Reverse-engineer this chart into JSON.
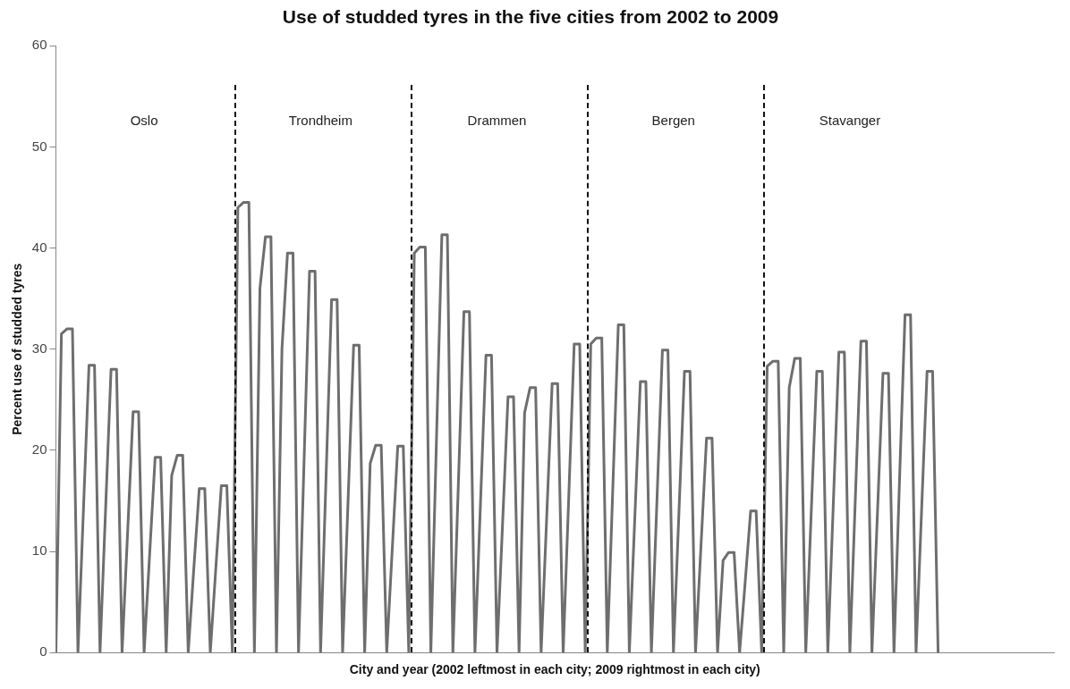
{
  "chart_data": {
    "type": "line",
    "title": "Use of studded tyres in the five cities from 2002 to 2009",
    "xlabel": "City and year (2002 leftmost in each city; 2009 rightmost in each city)",
    "ylabel": "Percent use of studded tyres",
    "annotations": [
      "Oslo",
      "Trondheim",
      "Drammen",
      "Bergen",
      "Stavanger"
    ],
    "categories": [
      null,
      null,
      null,
      null,
      null,
      null,
      null,
      null,
      null,
      null,
      null,
      null,
      null,
      null,
      null,
      null,
      null,
      null,
      null,
      null,
      null,
      null,
      null,
      null,
      null,
      null,
      null,
      null,
      null,
      null,
      null,
      null,
      null,
      null,
      null,
      null,
      null,
      null,
      null,
      null,
      null,
      null,
      null,
      null,
      null,
      null,
      null,
      null,
      null,
      null,
      null,
      null,
      null,
      null,
      null,
      null,
      null,
      null,
      null,
      null,
      null,
      null,
      null,
      null,
      null,
      null,
      null,
      null,
      null,
      null,
      null,
      null,
      null,
      null,
      null,
      null,
      null,
      null,
      null,
      null,
      null,
      null,
      null,
      null,
      null,
      null,
      null,
      null,
      null,
      null,
      null,
      null,
      null,
      null,
      null,
      null,
      null,
      null,
      null,
      null,
      null,
      null,
      null,
      null,
      null,
      null,
      null,
      null,
      null,
      null,
      null,
      null,
      null,
      null,
      null,
      null,
      null,
      null,
      null,
      null,
      null,
      null,
      null,
      null,
      null,
      null,
      null,
      null,
      null,
      null,
      null,
      null,
      null,
      null,
      null,
      null,
      null,
      null,
      null,
      null,
      null,
      null,
      null,
      null,
      null,
      null,
      null,
      null,
      null,
      null,
      null,
      null,
      null,
      null,
      null,
      null,
      null,
      null,
      null,
      null,
      null,
      null,
      null,
      null,
      null,
      null,
      null,
      null,
      null,
      null,
      null,
      null,
      null,
      null,
      null,
      null,
      null,
      null,
      null,
      null,
      null,
      null
    ],
    "series": [
      {
        "color": "#6e6e6e",
        "values": [
          0,
          31.5,
          32.0,
          32.0,
          0,
          14.2,
          28.4,
          28.4,
          0,
          14.0,
          28.0,
          28.0,
          0,
          11.8,
          23.8,
          23.8,
          0,
          9.7,
          19.3,
          19.3,
          0,
          17.5,
          19.5,
          19.5,
          0,
          8.2,
          16.2,
          16.2,
          0,
          8.3,
          16.5,
          16.5,
          0,
          44.0,
          44.5,
          44.5,
          0,
          36.0,
          41.1,
          41.1,
          0,
          30.0,
          39.5,
          39.5,
          0,
          18.8,
          37.7,
          37.7,
          0,
          17.4,
          34.9,
          34.9,
          0,
          15.2,
          30.4,
          30.4,
          0,
          18.7,
          20.5,
          20.5,
          0,
          10.2,
          20.4,
          20.4,
          0,
          39.5,
          40.1,
          40.1,
          0,
          20.6,
          41.3,
          41.3,
          0,
          16.8,
          33.7,
          33.7,
          0,
          14.7,
          29.4,
          29.4,
          0,
          12.6,
          25.3,
          25.3,
          0,
          23.7,
          26.2,
          26.2,
          0,
          13.2,
          26.6,
          26.6,
          0,
          15.2,
          30.5,
          30.5,
          0,
          30.5,
          31.1,
          31.1,
          0,
          16.2,
          32.4,
          32.4,
          0,
          13.4,
          26.8,
          26.8,
          0,
          14.9,
          29.9,
          29.9,
          0,
          13.9,
          27.8,
          27.8,
          0,
          10.6,
          21.2,
          21.2,
          0,
          9.1,
          9.9,
          9.9,
          0,
          6.9,
          14.0,
          14.0,
          0,
          28.3,
          28.8,
          28.8,
          0,
          26.2,
          29.1,
          29.1,
          0,
          14.0,
          27.8,
          27.8,
          0,
          14.8,
          29.7,
          29.7,
          0,
          15.4,
          30.8,
          30.8,
          0,
          13.8,
          27.6,
          27.6,
          0,
          17.0,
          33.4,
          33.4,
          0,
          14.0,
          27.8,
          27.8,
          0,
          null,
          null,
          null,
          null,
          null,
          null,
          null,
          null,
          null,
          null,
          null,
          null,
          null,
          null,
          null,
          null,
          null,
          null,
          null,
          null,
          null
        ]
      }
    ],
    "ylim": [
      0,
      60
    ],
    "yticks": [
      0,
      10,
      20,
      30,
      40,
      50,
      60
    ],
    "grid": false,
    "legend": false,
    "tick_labels": "y",
    "marker": "none",
    "line_style": "solid"
  }
}
